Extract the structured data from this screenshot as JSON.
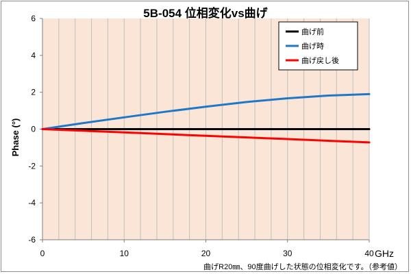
{
  "chart_data": {
    "type": "line",
    "title": "5B-054  位相変化vs曲げ",
    "xlabel": "GHz",
    "ylabel": "Phase (°)",
    "xlim": [
      0,
      40
    ],
    "ylim": [
      -6,
      6
    ],
    "x_ticks": [
      0,
      10,
      20,
      30,
      40
    ],
    "y_ticks": [
      6,
      4,
      2,
      0,
      -2,
      -4,
      -6
    ],
    "grid": "vertical minor lines every 2 GHz",
    "plot_background": "#fbe5d6",
    "legend_position": "top-right",
    "series": [
      {
        "name": "曲げ前",
        "color": "#000000",
        "x": [
          0,
          5,
          10,
          15,
          20,
          25,
          30,
          35,
          40
        ],
        "y": [
          0,
          0,
          0,
          0,
          0,
          0,
          0,
          0,
          0
        ]
      },
      {
        "name": "曲げ時",
        "color": "#1f77c8",
        "x": [
          0,
          5,
          10,
          15,
          20,
          25,
          30,
          35,
          40
        ],
        "y": [
          0,
          0.33,
          0.64,
          0.94,
          1.22,
          1.47,
          1.67,
          1.82,
          1.9
        ]
      },
      {
        "name": "曲げ戻し後",
        "color": "#ff0000",
        "x": [
          0,
          5,
          10,
          15,
          20,
          25,
          30,
          35,
          40
        ],
        "y": [
          0,
          -0.09,
          -0.18,
          -0.27,
          -0.36,
          -0.45,
          -0.54,
          -0.63,
          -0.72
        ]
      }
    ],
    "note": "曲げR20㎜、90度曲げした状態の位相変化です。（参考値）"
  }
}
